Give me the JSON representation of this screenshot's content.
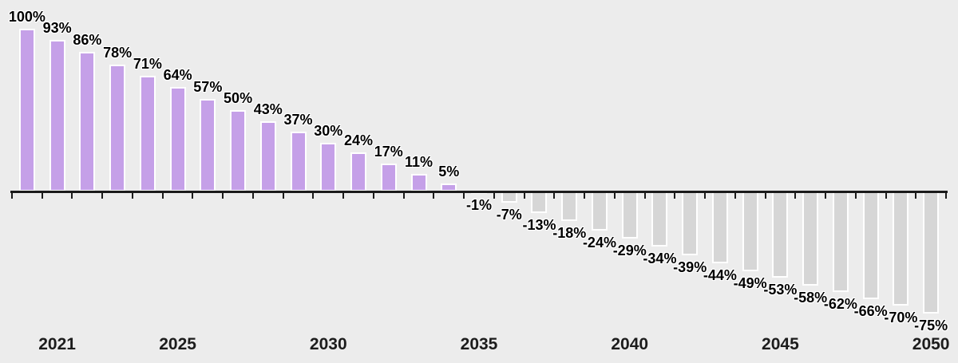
{
  "chart_data": {
    "type": "bar",
    "title": "",
    "xlabel": "",
    "ylabel": "",
    "grid": false,
    "legend_position": "none",
    "years": [
      2020,
      2021,
      2022,
      2023,
      2024,
      2025,
      2026,
      2027,
      2028,
      2029,
      2030,
      2031,
      2032,
      2033,
      2034,
      2035,
      2036,
      2037,
      2038,
      2039,
      2040,
      2041,
      2042,
      2043,
      2044,
      2045,
      2046,
      2047,
      2048,
      2049,
      2050
    ],
    "values": [
      100,
      93,
      86,
      78,
      71,
      64,
      57,
      50,
      43,
      37,
      30,
      24,
      17,
      11,
      5,
      -1,
      -7,
      -13,
      -18,
      -24,
      -29,
      -34,
      -39,
      -44,
      -49,
      -53,
      -58,
      -62,
      -66,
      -70,
      -75
    ],
    "labels": [
      "100%",
      "93%",
      "86%",
      "78%",
      "71%",
      "64%",
      "57%",
      "50%",
      "43%",
      "37%",
      "30%",
      "24%",
      "17%",
      "11%",
      "5%",
      "-1%",
      "-7%",
      "-13%",
      "-18%",
      "-24%",
      "-29%",
      "-34%",
      "-39%",
      "-44%",
      "-49%",
      "-53%",
      "-58%",
      "-62%",
      "-66%",
      "-70%",
      "-75%"
    ],
    "x_tick_labels": [
      "2021",
      "2025",
      "2030",
      "2035",
      "2040",
      "2045",
      "2050"
    ],
    "ylim": [
      -80,
      105
    ],
    "colors": {
      "positive_bar": "#c5a0e8",
      "negative_bar": "#d6d6d6",
      "bar_border": "#ffffff",
      "axis": "#1a1a1a",
      "value_label_text": "#000000",
      "tick_label_text": "#1c1c1c",
      "background": "#ececec"
    }
  }
}
